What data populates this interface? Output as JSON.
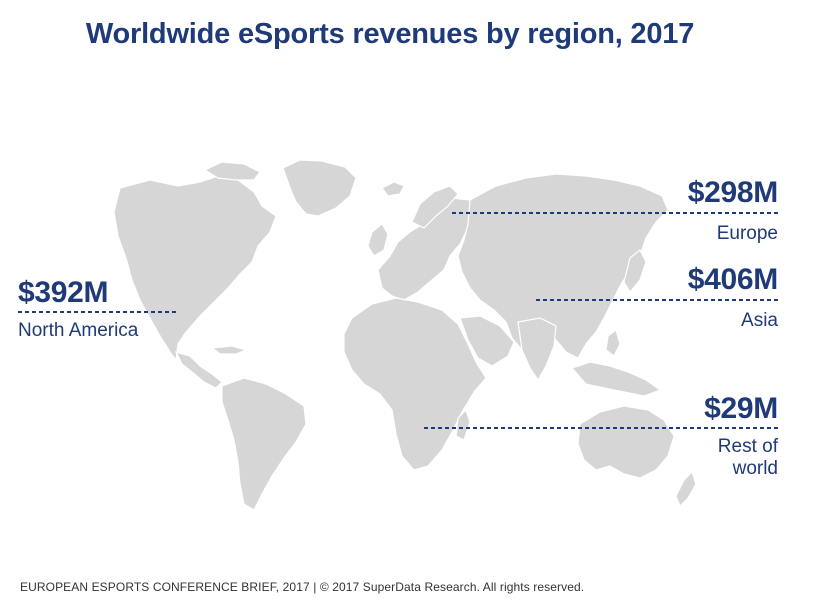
{
  "title": "Worldwide eSports revenues by region, 2017",
  "chart_data": {
    "type": "map",
    "currency": "USD",
    "series": [
      {
        "region": "North America",
        "value_millions": 392,
        "label": "$392M",
        "region_label": "North America"
      },
      {
        "region": "Europe",
        "value_millions": 298,
        "label": "$298M",
        "region_label": "Europe"
      },
      {
        "region": "Asia",
        "value_millions": 406,
        "label": "$406M",
        "region_label": "Asia"
      },
      {
        "region": "Rest of world",
        "value_millions": 29,
        "label": "$29M",
        "region_label": "Rest of world"
      }
    ]
  },
  "labels": {
    "north_america": {
      "value": "$392M",
      "region": "North America"
    },
    "europe": {
      "value": "$298M",
      "region": "Europe"
    },
    "asia": {
      "value": "$406M",
      "region": "Asia"
    },
    "rest_of_world": {
      "value": "$29M",
      "region_line1": "Rest of",
      "region_line2": "world"
    }
  },
  "footer": "EUROPEAN ESPORTS CONFERENCE BRIEF, 2017  |  © 2017 SuperData Research. All rights reserved.",
  "colors": {
    "accent": "#1f3a78",
    "land": "#d6d6d6",
    "footer_text": "#333333"
  }
}
